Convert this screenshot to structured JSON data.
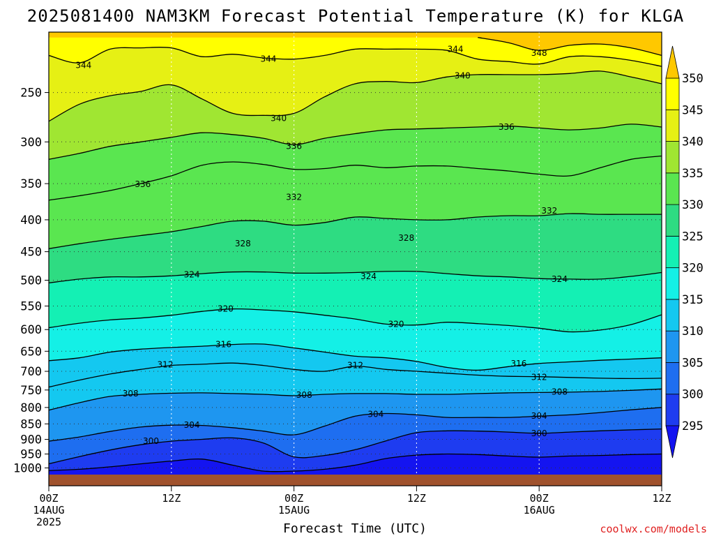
{
  "chart_data": {
    "type": "contour",
    "title": "2025081400 NAM3KM Forecast Potential Temperature (K) for KLGA",
    "xlabel": "Forecast Time (UTC)",
    "ylabel": "",
    "x_ticks": [
      {
        "label": "00Z",
        "date": "14AUG",
        "year": "2025",
        "hour": 0
      },
      {
        "label": "12Z",
        "date": "",
        "year": "",
        "hour": 12
      },
      {
        "label": "00Z",
        "date": "15AUG",
        "year": "",
        "hour": 24
      },
      {
        "label": "12Z",
        "date": "",
        "year": "",
        "hour": 36
      },
      {
        "label": "00Z",
        "date": "16AUG",
        "year": "",
        "hour": 48
      },
      {
        "label": "12Z",
        "date": "",
        "year": "",
        "hour": 60
      }
    ],
    "x_range_hours": [
      0,
      60
    ],
    "y_ticks": [
      250,
      300,
      350,
      400,
      450,
      500,
      550,
      600,
      650,
      700,
      750,
      800,
      850,
      900,
      950,
      1000
    ],
    "y_range_hpa": [
      200,
      1025
    ],
    "y_scale": "log",
    "grid": true,
    "colorbar": {
      "levels": [
        295,
        300,
        305,
        310,
        315,
        320,
        325,
        330,
        335,
        340,
        345,
        350
      ],
      "colors": [
        "#1414f0",
        "#1e3cf0",
        "#1e6ef0",
        "#1e96f0",
        "#14c8f0",
        "#14f0e6",
        "#14f0b4",
        "#2edc82",
        "#5ae650",
        "#a0e632",
        "#e6f014",
        "#ffff00",
        "#ffc800"
      ],
      "extend": "both"
    },
    "contour_levels": [
      296,
      300,
      304,
      308,
      312,
      316,
      320,
      324,
      328,
      332,
      336,
      340,
      344,
      348
    ],
    "contour_labels": [
      {
        "text": "344",
        "t": 3.4,
        "p": 226
      },
      {
        "text": "344",
        "t": 21.5,
        "p": 221
      },
      {
        "text": "344",
        "t": 39.8,
        "p": 213
      },
      {
        "text": "348",
        "t": 48.0,
        "p": 216
      },
      {
        "text": "340",
        "t": 40.5,
        "p": 235
      },
      {
        "text": "340",
        "t": 22.5,
        "p": 275
      },
      {
        "text": "336",
        "t": 44.8,
        "p": 284
      },
      {
        "text": "336",
        "t": 24.0,
        "p": 305
      },
      {
        "text": "336",
        "t": 9.2,
        "p": 351
      },
      {
        "text": "332",
        "t": 24.0,
        "p": 368
      },
      {
        "text": "332",
        "t": 49.0,
        "p": 387
      },
      {
        "text": "328",
        "t": 19.0,
        "p": 437
      },
      {
        "text": "328",
        "t": 35.0,
        "p": 428
      },
      {
        "text": "324",
        "t": 14.0,
        "p": 490
      },
      {
        "text": "324",
        "t": 31.3,
        "p": 493
      },
      {
        "text": "324",
        "t": 50.0,
        "p": 498
      },
      {
        "text": "320",
        "t": 17.3,
        "p": 556
      },
      {
        "text": "320",
        "t": 34.0,
        "p": 588
      },
      {
        "text": "316",
        "t": 17.1,
        "p": 634
      },
      {
        "text": "316",
        "t": 46.0,
        "p": 680
      },
      {
        "text": "312",
        "t": 11.4,
        "p": 683
      },
      {
        "text": "312",
        "t": 30.0,
        "p": 685
      },
      {
        "text": "312",
        "t": 48.0,
        "p": 715
      },
      {
        "text": "308",
        "t": 8.0,
        "p": 760
      },
      {
        "text": "308",
        "t": 25.0,
        "p": 764
      },
      {
        "text": "308",
        "t": 50.0,
        "p": 755
      },
      {
        "text": "304",
        "t": 14.0,
        "p": 854
      },
      {
        "text": "304",
        "t": 32.0,
        "p": 820
      },
      {
        "text": "304",
        "t": 48.0,
        "p": 825
      },
      {
        "text": "300",
        "t": 10.0,
        "p": 906
      },
      {
        "text": "300",
        "t": 48.0,
        "p": 880
      }
    ],
    "isentropes": [
      {
        "level": 348,
        "t": [
          42,
          45,
          48,
          51,
          54,
          57,
          60
        ],
        "p": [
          204,
          208,
          214,
          210,
          209,
          212,
          218
        ]
      },
      {
        "level": 344,
        "t": [
          0,
          3,
          6,
          9,
          12,
          15,
          18,
          21,
          24,
          27,
          30,
          33,
          36,
          39,
          42,
          45,
          48,
          51,
          54,
          57,
          60
        ],
        "p": [
          218,
          224,
          213,
          212,
          212,
          219,
          217,
          220,
          221,
          218,
          213,
          213,
          213,
          214,
          221,
          223,
          225,
          219,
          219,
          222,
          227
        ]
      },
      {
        "level": 340,
        "t": [
          0,
          3,
          6,
          9,
          12,
          15,
          18,
          21,
          24,
          27,
          30,
          33,
          36,
          39,
          42,
          45,
          48,
          51,
          54,
          57,
          60
        ],
        "p": [
          278,
          261,
          253,
          249,
          243,
          256,
          270,
          272,
          270,
          254,
          242,
          240,
          241,
          236,
          234,
          234,
          234,
          233,
          231,
          236,
          242
        ]
      },
      {
        "level": 336,
        "t": [
          0,
          3,
          6,
          9,
          12,
          15,
          18,
          21,
          24,
          27,
          30,
          33,
          36,
          39,
          42,
          45,
          48,
          51,
          54,
          57,
          60
        ],
        "p": [
          320,
          313,
          305,
          300,
          295,
          290,
          292,
          296,
          303,
          296,
          291,
          287,
          286,
          285,
          284,
          283,
          285,
          287,
          285,
          281,
          284
        ]
      },
      {
        "level": 332,
        "t": [
          0,
          3,
          6,
          9,
          12,
          15,
          18,
          21,
          24,
          27,
          30,
          33,
          36,
          39,
          42,
          45,
          48,
          51,
          54,
          57,
          60
        ],
        "p": [
          372,
          366,
          359,
          350,
          340,
          327,
          323,
          326,
          332,
          331,
          327,
          330,
          328,
          328,
          331,
          334,
          338,
          340,
          330,
          320,
          316
        ]
      },
      {
        "level": 328,
        "t": [
          0,
          3,
          6,
          9,
          12,
          15,
          18,
          21,
          24,
          27,
          30,
          33,
          36,
          39,
          42,
          45,
          48,
          51,
          54,
          57,
          60
        ],
        "p": [
          445,
          437,
          430,
          424,
          418,
          410,
          402,
          402,
          408,
          404,
          396,
          398,
          400,
          400,
          396,
          394,
          394,
          391,
          392,
          392,
          392
        ]
      },
      {
        "level": 324,
        "t": [
          0,
          3,
          6,
          9,
          12,
          15,
          18,
          21,
          24,
          27,
          30,
          33,
          36,
          39,
          42,
          45,
          48,
          51,
          54,
          57,
          60
        ],
        "p": [
          505,
          498,
          494,
          494,
          492,
          488,
          485,
          485,
          487,
          487,
          486,
          484,
          484,
          488,
          492,
          494,
          497,
          498,
          498,
          493,
          486
        ]
      },
      {
        "level": 320,
        "t": [
          0,
          3,
          6,
          9,
          12,
          15,
          18,
          21,
          24,
          27,
          30,
          33,
          36,
          39,
          42,
          45,
          48,
          51,
          54,
          57,
          60
        ],
        "p": [
          596,
          586,
          579,
          575,
          569,
          561,
          556,
          558,
          562,
          569,
          577,
          588,
          590,
          584,
          587,
          591,
          597,
          605,
          601,
          589,
          568
        ]
      },
      {
        "level": 316,
        "t": [
          0,
          3,
          6,
          9,
          12,
          15,
          18,
          21,
          24,
          27,
          30,
          33,
          36,
          39,
          42,
          45,
          48,
          51,
          54,
          57,
          60
        ],
        "p": [
          673,
          666,
          652,
          645,
          641,
          638,
          634,
          633,
          642,
          652,
          662,
          666,
          675,
          690,
          697,
          688,
          680,
          676,
          672,
          669,
          666
        ]
      },
      {
        "level": 312,
        "t": [
          0,
          3,
          6,
          9,
          12,
          15,
          18,
          21,
          24,
          27,
          30,
          33,
          36,
          39,
          42,
          45,
          48,
          51,
          54,
          57,
          60
        ],
        "p": [
          742,
          723,
          707,
          695,
          685,
          682,
          679,
          685,
          695,
          700,
          687,
          695,
          700,
          705,
          710,
          713,
          714,
          716,
          718,
          719,
          718
        ]
      },
      {
        "level": 308,
        "t": [
          0,
          3,
          6,
          9,
          12,
          15,
          18,
          21,
          24,
          27,
          30,
          33,
          36,
          39,
          42,
          45,
          48,
          51,
          54,
          57,
          60
        ],
        "p": [
          808,
          786,
          768,
          762,
          759,
          758,
          760,
          762,
          766,
          762,
          760,
          760,
          762,
          762,
          760,
          758,
          757,
          756,
          754,
          751,
          747
        ]
      },
      {
        "level": 304,
        "t": [
          0,
          3,
          6,
          9,
          12,
          15,
          18,
          21,
          24,
          27,
          30,
          33,
          36,
          39,
          42,
          45,
          48,
          51,
          54,
          57,
          60
        ],
        "p": [
          906,
          892,
          874,
          860,
          854,
          855,
          862,
          873,
          885,
          857,
          826,
          818,
          822,
          830,
          830,
          830,
          826,
          822,
          815,
          807,
          800
        ]
      },
      {
        "level": 300,
        "t": [
          0,
          3,
          6,
          9,
          12,
          15,
          18,
          21,
          24,
          27,
          30,
          33,
          36,
          39,
          42,
          45,
          48,
          51,
          54,
          57,
          60
        ],
        "p": [
          985,
          959,
          936,
          918,
          906,
          900,
          895,
          912,
          960,
          955,
          935,
          905,
          878,
          872,
          873,
          876,
          880,
          876,
          872,
          869,
          866
        ]
      },
      {
        "level": 296,
        "t": [
          0,
          3,
          6,
          9,
          12,
          15,
          18,
          21,
          24,
          27,
          30,
          33,
          36,
          39,
          42,
          45,
          48,
          51,
          54,
          57,
          60
        ],
        "p": [
          1010,
          1005,
          996,
          985,
          975,
          968,
          990,
          1012,
          1012,
          1005,
          990,
          966,
          954,
          950,
          952,
          957,
          961,
          957,
          955,
          952,
          950
        ]
      }
    ],
    "surface_color": "#a0522d"
  },
  "credit": "coolwx.com/models"
}
